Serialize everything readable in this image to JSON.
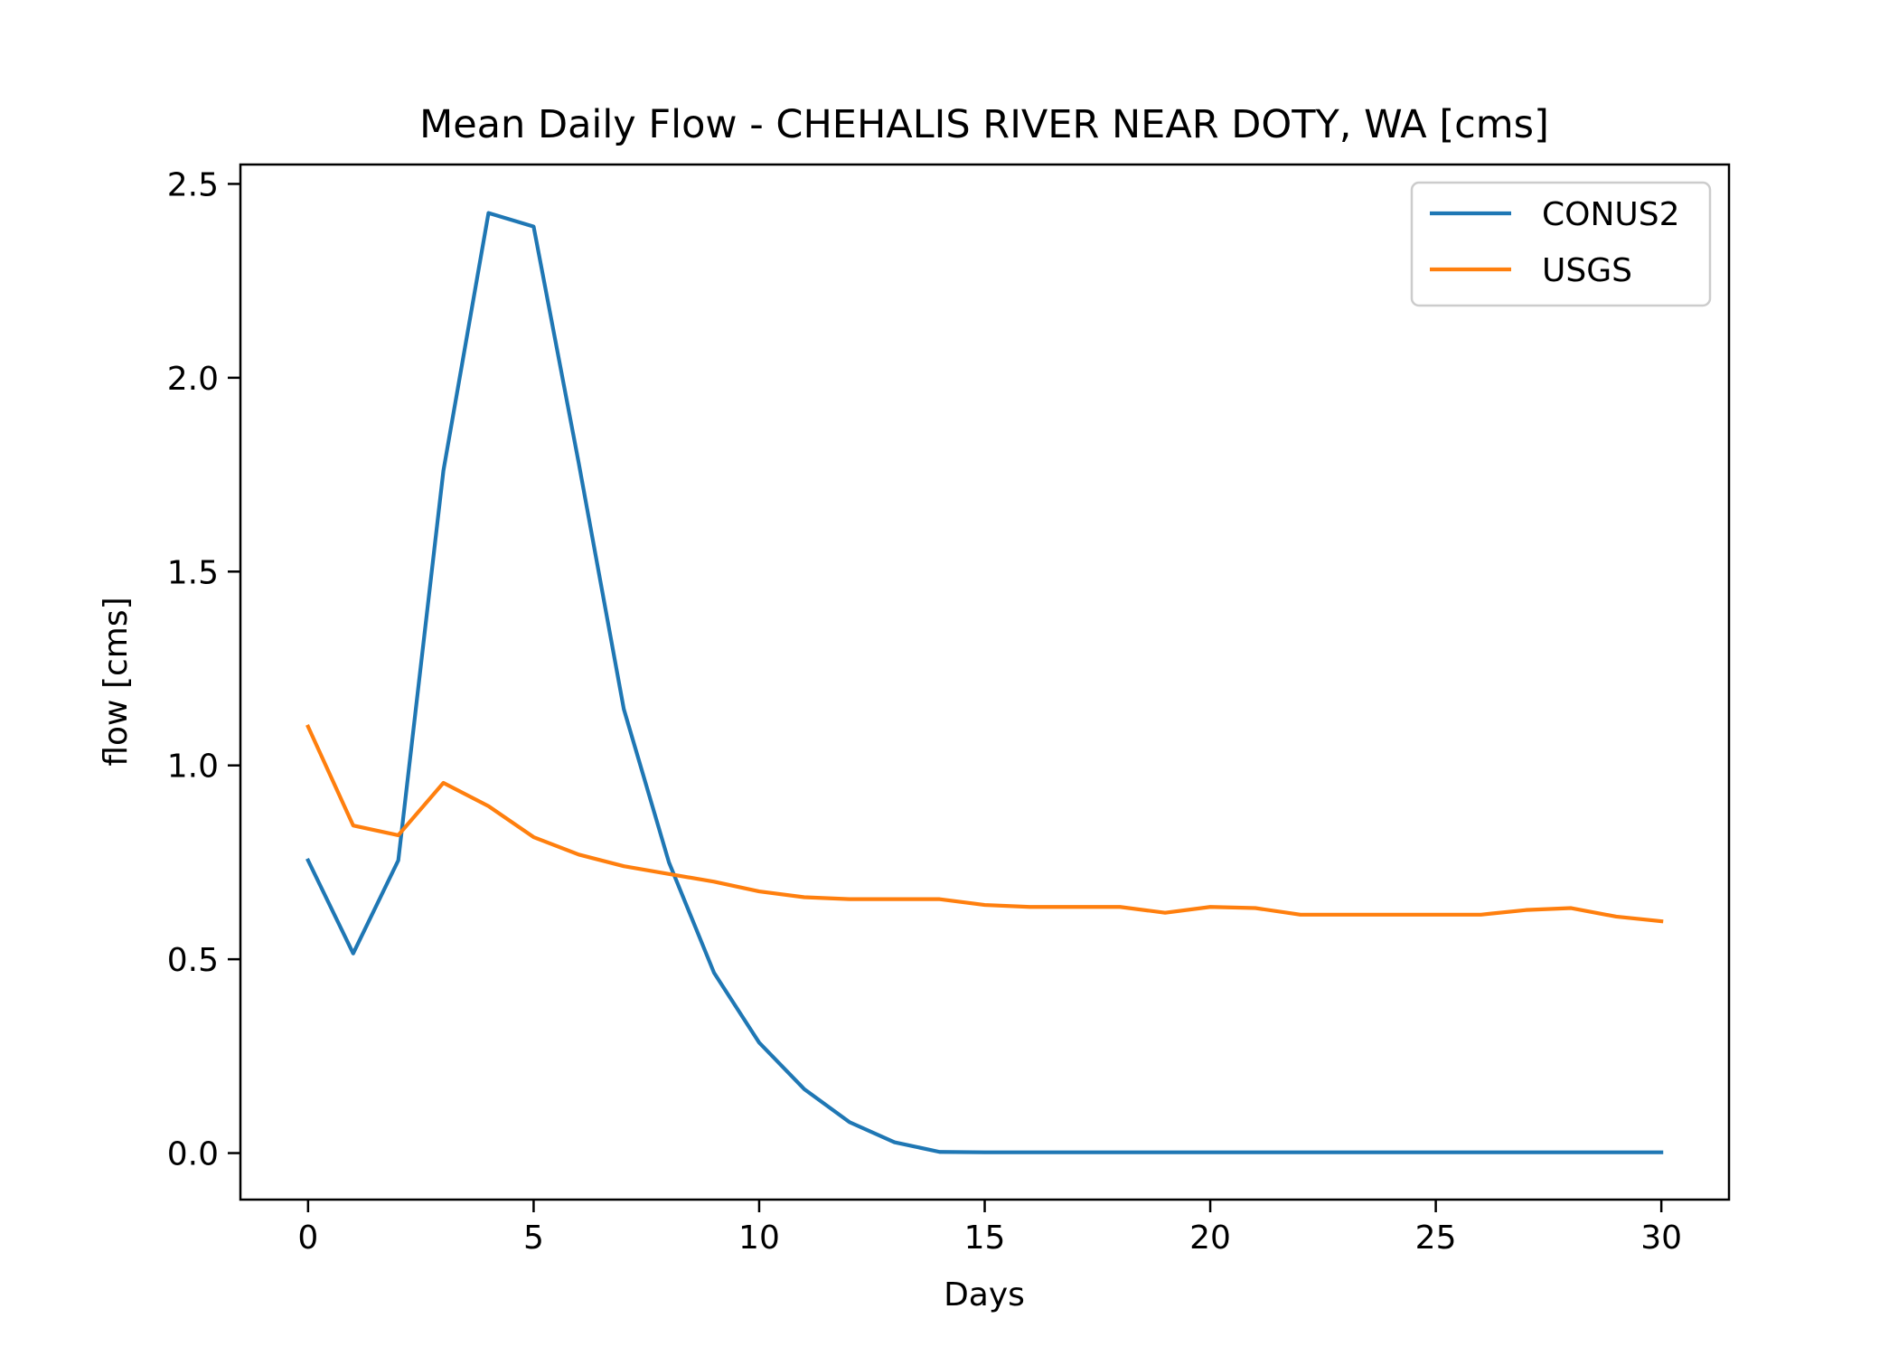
{
  "chart_data": {
    "type": "line",
    "title": "Mean Daily Flow - CHEHALIS RIVER NEAR DOTY, WA [cms]",
    "xlabel": "Days",
    "ylabel": "flow [cms]",
    "xlim": [
      -1.5,
      31.5
    ],
    "ylim": [
      -0.12,
      2.55
    ],
    "xticks": [
      0,
      5,
      10,
      15,
      20,
      25,
      30
    ],
    "xtick_labels": [
      "0",
      "5",
      "10",
      "15",
      "20",
      "25",
      "30"
    ],
    "yticks": [
      0.0,
      0.5,
      1.0,
      1.5,
      2.0,
      2.5
    ],
    "ytick_labels": [
      "0.0",
      "0.5",
      "1.0",
      "1.5",
      "2.0",
      "2.5"
    ],
    "grid": false,
    "legend_position": "top-right",
    "x": [
      0,
      1,
      2,
      3,
      4,
      5,
      6,
      7,
      8,
      9,
      10,
      11,
      12,
      13,
      14,
      15,
      16,
      17,
      18,
      19,
      20,
      21,
      22,
      23,
      24,
      25,
      26,
      27,
      28,
      29,
      30
    ],
    "series": [
      {
        "name": "CONUS2",
        "color": "#1f77b4",
        "values": [
          0.755,
          0.515,
          0.755,
          1.76,
          2.425,
          2.39,
          1.78,
          1.145,
          0.75,
          0.465,
          0.285,
          0.165,
          0.08,
          0.028,
          0.003,
          0.002,
          0.002,
          0.002,
          0.002,
          0.002,
          0.002,
          0.002,
          0.002,
          0.002,
          0.002,
          0.002,
          0.002,
          0.002,
          0.002,
          0.002,
          0.002
        ]
      },
      {
        "name": "USGS",
        "color": "#ff7f0e",
        "values": [
          1.1,
          0.845,
          0.82,
          0.955,
          0.895,
          0.815,
          0.77,
          0.74,
          0.72,
          0.7,
          0.675,
          0.66,
          0.655,
          0.655,
          0.655,
          0.64,
          0.635,
          0.635,
          0.635,
          0.62,
          0.635,
          0.632,
          0.615,
          0.615,
          0.615,
          0.615,
          0.615,
          0.627,
          0.632,
          0.61,
          0.598
        ]
      }
    ]
  }
}
